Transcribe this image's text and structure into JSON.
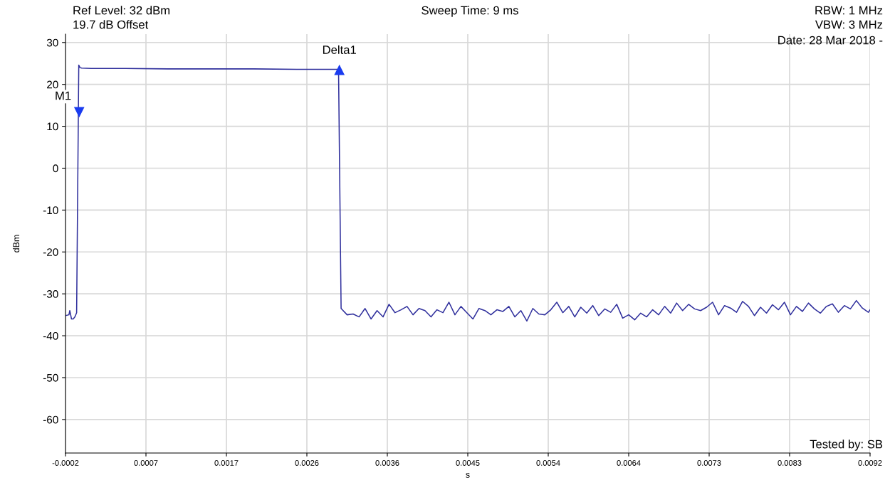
{
  "chart_data": {
    "type": "line",
    "xlabel": "s",
    "ylabel": "dBm",
    "annotations": [
      "Ref Level: 32 dBm",
      "19.7 dB Offset",
      "Sweep Time: 9 ms",
      "RBW: 1 MHz",
      "VBW: 3 MHz",
      "Date: 28 Mar 2018 -",
      "Tested by: SB",
      {
        "text": "M1",
        "x": -4e-05,
        "y": 13.4
      },
      {
        "text": "Delta1",
        "x": 0.003,
        "y": 23.4
      }
    ],
    "xlim": [
      -0.0002,
      0.0092
    ],
    "ylim": [
      -68,
      32
    ],
    "xticks": [
      {
        "value": -0.0002,
        "label": "-0.0002"
      },
      {
        "value": 0.00074,
        "label": "0.0007"
      },
      {
        "value": 0.00168,
        "label": "0.0017"
      },
      {
        "value": 0.00262,
        "label": "0.0026"
      },
      {
        "value": 0.00356,
        "label": "0.0036"
      },
      {
        "value": 0.0045,
        "label": "0.0045"
      },
      {
        "value": 0.00544,
        "label": "0.0054"
      },
      {
        "value": 0.00638,
        "label": "0.0064"
      },
      {
        "value": 0.00732,
        "label": "0.0073"
      },
      {
        "value": 0.00826,
        "label": "0.0083"
      },
      {
        "value": 0.0092,
        "label": "0.0092"
      }
    ],
    "yticks": [
      30,
      20,
      10,
      0,
      -10,
      -20,
      -30,
      -40,
      -50,
      -60
    ],
    "grid": true,
    "marker": "none",
    "line_style": "solid",
    "series": [
      {
        "color": "#2e2e9c",
        "x": [
          -0.0002,
          -0.00016,
          -0.00015,
          -0.00013,
          -0.00011,
          -9e-05,
          -7e-05,
          -4.5e-05,
          -3e-05,
          -1e-05,
          0.0001,
          0.0005,
          0.001,
          0.0015,
          0.002,
          0.0025,
          0.00299,
          0.00302,
          0.00309,
          0.00316,
          0.00323,
          0.0033,
          0.00337,
          0.00344,
          0.00351,
          0.00358,
          0.00365,
          0.00372,
          0.00379,
          0.00386,
          0.00393,
          0.004,
          0.00407,
          0.00414,
          0.00421,
          0.00428,
          0.00435,
          0.00442,
          0.00449,
          0.00456,
          0.00463,
          0.0047,
          0.00477,
          0.00484,
          0.00491,
          0.00498,
          0.00505,
          0.00512,
          0.00519,
          0.00526,
          0.00533,
          0.0054,
          0.00547,
          0.00554,
          0.00561,
          0.00568,
          0.00575,
          0.00582,
          0.00589,
          0.00596,
          0.00603,
          0.0061,
          0.00617,
          0.00624,
          0.00631,
          0.00638,
          0.00645,
          0.00652,
          0.00659,
          0.00666,
          0.00673,
          0.0068,
          0.00687,
          0.00694,
          0.00701,
          0.00708,
          0.00715,
          0.00722,
          0.00729,
          0.00736,
          0.00743,
          0.0075,
          0.00757,
          0.00764,
          0.00771,
          0.00778,
          0.00785,
          0.00792,
          0.00799,
          0.00806,
          0.00813,
          0.0082,
          0.00827,
          0.00834,
          0.00841,
          0.00848,
          0.00855,
          0.00862,
          0.00869,
          0.00876,
          0.00883,
          0.0089,
          0.00897,
          0.00904,
          0.00911,
          0.00918,
          0.0092
        ],
        "values": [
          -35.2,
          -35.0,
          -34.0,
          -36.0,
          -36.0,
          -35.5,
          -34.5,
          24.6,
          24.0,
          23.9,
          23.8,
          23.8,
          23.7,
          23.7,
          23.7,
          23.6,
          23.6,
          -33.5,
          -35.0,
          -34.8,
          -35.5,
          -33.5,
          -36.0,
          -34.0,
          -35.5,
          -32.5,
          -34.5,
          -33.8,
          -33.0,
          -35.0,
          -33.5,
          -34.0,
          -35.5,
          -33.8,
          -34.5,
          -32.0,
          -35.0,
          -33.0,
          -34.5,
          -36.0,
          -33.5,
          -34.0,
          -35.0,
          -33.8,
          -34.2,
          -33.0,
          -35.5,
          -34.0,
          -36.5,
          -33.5,
          -34.8,
          -35.0,
          -33.8,
          -32.0,
          -34.5,
          -33.0,
          -35.5,
          -33.2,
          -34.6,
          -32.8,
          -35.2,
          -33.6,
          -34.4,
          -32.5,
          -35.8,
          -35.0,
          -36.2,
          -34.6,
          -35.5,
          -33.8,
          -35.0,
          -33.0,
          -34.6,
          -32.2,
          -34.0,
          -32.5,
          -33.6,
          -34.0,
          -33.2,
          -32.0,
          -35.0,
          -32.8,
          -33.4,
          -34.4,
          -31.8,
          -33.0,
          -35.2,
          -33.2,
          -34.6,
          -32.6,
          -33.8,
          -32.0,
          -35.0,
          -33.0,
          -34.2,
          -32.2,
          -33.6,
          -34.6,
          -33.0,
          -32.4,
          -34.4,
          -32.8,
          -33.6,
          -31.6,
          -33.4,
          -34.4,
          -33.8
        ]
      }
    ]
  }
}
